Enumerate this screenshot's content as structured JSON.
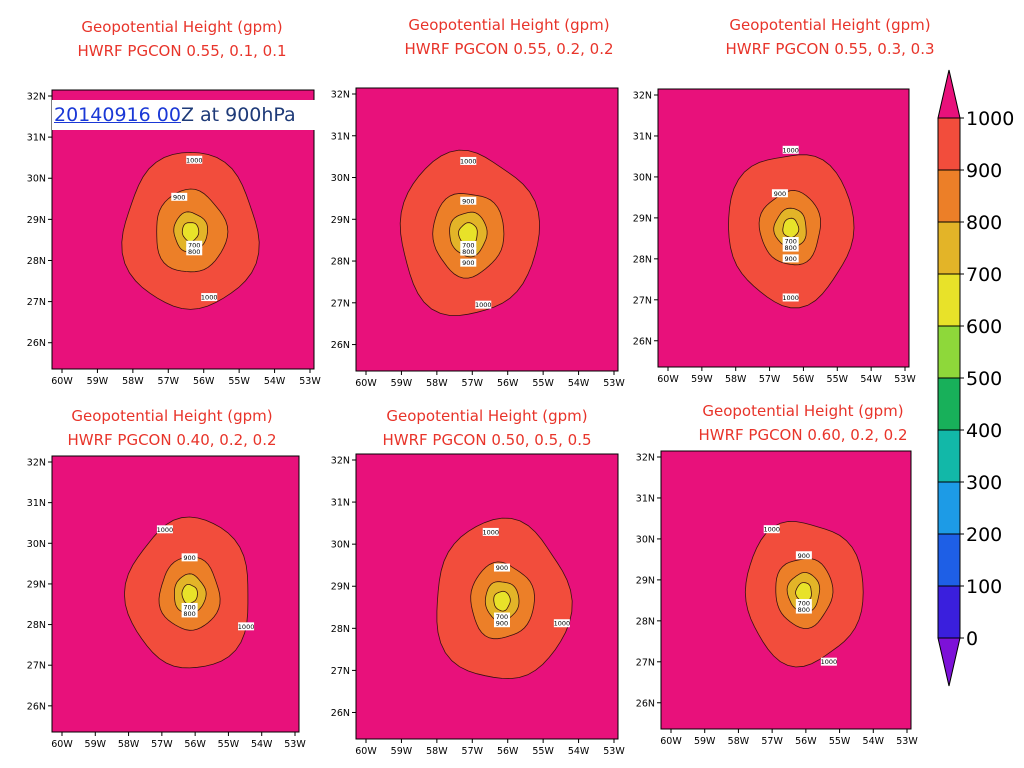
{
  "annotation": {
    "date_link": "20140916 00",
    "date_rest": "Z at 900hPa"
  },
  "colors": {
    "background": "#e8117b",
    "levels": [
      "#7d11d8",
      "#3a1fdd",
      "#1e5fe6",
      "#1d9be6",
      "#12b8a8",
      "#18b05a",
      "#8ed83a",
      "#e8e229",
      "#e3b428",
      "#ec7f28",
      "#f24d3c",
      "#e8117b"
    ]
  },
  "colorbar": {
    "labels": [
      "1000",
      "900",
      "800",
      "700",
      "600",
      "500",
      "400",
      "300",
      "200",
      "100",
      "0"
    ]
  },
  "chart_data": [
    {
      "type": "contour",
      "title": "Geopotential Height (gpm)",
      "subtitle": "HWRF PGCON 0.55, 0.1, 0.1",
      "xticks": [
        "60W",
        "59W",
        "58W",
        "57W",
        "56W",
        "55W",
        "54W",
        "53W"
      ],
      "yticks": [
        "32N",
        "31N",
        "30N",
        "29N",
        "28N",
        "27N",
        "26N"
      ],
      "xlim": [
        -60,
        -53
      ],
      "ylim": [
        25.6,
        32
      ],
      "center": [
        -56.3,
        28.75
      ],
      "contours": [
        {
          "level": 1000,
          "radius": 1.8
        },
        {
          "level": 900,
          "radius": 0.95
        },
        {
          "level": 800,
          "radius": 0.45
        },
        {
          "level": 700,
          "radius": 0.22
        }
      ],
      "contour_labels": [
        {
          "text": "1000",
          "x": -56.2,
          "y": 30.4
        },
        {
          "text": "900",
          "x": -56.6,
          "y": 29.55
        },
        {
          "text": "700",
          "x": -56.2,
          "y": 28.45
        },
        {
          "text": "800",
          "x": -56.2,
          "y": 28.3
        },
        {
          "text": "1000",
          "x": -55.8,
          "y": 27.25
        }
      ]
    },
    {
      "type": "contour",
      "title": "Geopotential Height (gpm)",
      "subtitle": "HWRF PGCON 0.55, 0.2, 0.2",
      "xticks": [
        "60W",
        "59W",
        "58W",
        "57W",
        "56W",
        "55W",
        "54W",
        "53W"
      ],
      "yticks": [
        "32N",
        "31N",
        "30N",
        "29N",
        "28N",
        "27N",
        "26N"
      ],
      "xlim": [
        -60,
        -53
      ],
      "ylim": [
        25.6,
        32
      ],
      "center": [
        -57.0,
        28.7
      ],
      "contours": [
        {
          "level": 1000,
          "radius": 1.85
        },
        {
          "level": 900,
          "radius": 0.95
        },
        {
          "level": 800,
          "radius": 0.5
        },
        {
          "level": 700,
          "radius": 0.25
        }
      ],
      "contour_labels": [
        {
          "text": "1000",
          "x": -57.0,
          "y": 30.35
        },
        {
          "text": "900",
          "x": -57.0,
          "y": 29.45
        },
        {
          "text": "700",
          "x": -57.0,
          "y": 28.45
        },
        {
          "text": "800",
          "x": -57.0,
          "y": 28.3
        },
        {
          "text": "900",
          "x": -57.0,
          "y": 28.05
        },
        {
          "text": "1000",
          "x": -56.6,
          "y": 27.1
        }
      ]
    },
    {
      "type": "contour",
      "title": "Geopotential Height (gpm)",
      "subtitle": "HWRF PGCON 0.55, 0.3, 0.3",
      "xticks": [
        "60W",
        "59W",
        "58W",
        "57W",
        "56W",
        "55W",
        "54W",
        "53W"
      ],
      "yticks": [
        "32N",
        "31N",
        "30N",
        "29N",
        "28N",
        "27N",
        "26N"
      ],
      "xlim": [
        -60,
        -53
      ],
      "ylim": [
        25.6,
        32
      ],
      "center": [
        -56.3,
        28.8
      ],
      "contours": [
        {
          "level": 1000,
          "radius": 1.75
        },
        {
          "level": 900,
          "radius": 0.85
        },
        {
          "level": 800,
          "radius": 0.45
        },
        {
          "level": 700,
          "radius": 0.22
        }
      ],
      "contour_labels": [
        {
          "text": "1000",
          "x": -56.3,
          "y": 30.6
        },
        {
          "text": "900",
          "x": -56.6,
          "y": 29.6
        },
        {
          "text": "700",
          "x": -56.3,
          "y": 28.5
        },
        {
          "text": "800",
          "x": -56.3,
          "y": 28.35
        },
        {
          "text": "900",
          "x": -56.3,
          "y": 28.1
        },
        {
          "text": "1000",
          "x": -56.3,
          "y": 27.2
        }
      ]
    },
    {
      "type": "contour",
      "title": "Geopotential Height (gpm)",
      "subtitle": "HWRF PGCON 0.40, 0.2, 0.2",
      "xticks": [
        "60W",
        "59W",
        "58W",
        "57W",
        "56W",
        "55W",
        "54W",
        "53W"
      ],
      "yticks": [
        "32N",
        "31N",
        "30N",
        "29N",
        "28N",
        "27N",
        "26N"
      ],
      "xlim": [
        -60,
        -53
      ],
      "ylim": [
        25.6,
        32
      ],
      "center": [
        -56.1,
        28.8
      ],
      "contours": [
        {
          "level": 1000,
          "radius": 1.75
        },
        {
          "level": 900,
          "radius": 0.85
        },
        {
          "level": 800,
          "radius": 0.45
        },
        {
          "level": 700,
          "radius": 0.22
        }
      ],
      "contour_labels": [
        {
          "text": "1000",
          "x": -56.8,
          "y": 30.3
        },
        {
          "text": "900",
          "x": -56.1,
          "y": 29.65
        },
        {
          "text": "700",
          "x": -56.1,
          "y": 28.5
        },
        {
          "text": "800",
          "x": -56.1,
          "y": 28.35
        },
        {
          "text": "1000",
          "x": -54.5,
          "y": 28.05
        }
      ]
    },
    {
      "type": "contour",
      "title": "Geopotential Height (gpm)",
      "subtitle": "HWRF PGCON 0.50, 0.5, 0.5",
      "xticks": [
        "60W",
        "59W",
        "58W",
        "57W",
        "56W",
        "55W",
        "54W",
        "53W"
      ],
      "yticks": [
        "32N",
        "31N",
        "30N",
        "29N",
        "28N",
        "27N",
        "26N"
      ],
      "xlim": [
        -60,
        -53
      ],
      "ylim": [
        25.6,
        32
      ],
      "center": [
        -56.1,
        28.7
      ],
      "contours": [
        {
          "level": 1000,
          "radius": 1.8
        },
        {
          "level": 900,
          "radius": 0.85
        },
        {
          "level": 800,
          "radius": 0.45
        },
        {
          "level": 700,
          "radius": 0.22
        }
      ],
      "contour_labels": [
        {
          "text": "1000",
          "x": -56.4,
          "y": 30.25
        },
        {
          "text": "900",
          "x": -56.1,
          "y": 29.45
        },
        {
          "text": "700",
          "x": -56.1,
          "y": 28.35
        },
        {
          "text": "900",
          "x": -56.1,
          "y": 28.2
        },
        {
          "text": "1000",
          "x": -54.5,
          "y": 28.2
        }
      ]
    },
    {
      "type": "contour",
      "title": "Geopotential Height (gpm)",
      "subtitle": "HWRF PGCON 0.60, 0.2, 0.2",
      "xticks": [
        "60W",
        "59W",
        "58W",
        "57W",
        "56W",
        "55W",
        "54W",
        "53W"
      ],
      "yticks": [
        "32N",
        "31N",
        "30N",
        "29N",
        "28N",
        "27N",
        "26N"
      ],
      "xlim": [
        -60,
        -53
      ],
      "ylim": [
        25.6,
        32
      ],
      "center": [
        -56.0,
        28.75
      ],
      "contours": [
        {
          "level": 1000,
          "radius": 1.65
        },
        {
          "level": 900,
          "radius": 0.8
        },
        {
          "level": 800,
          "radius": 0.45
        },
        {
          "level": 700,
          "radius": 0.22
        }
      ],
      "contour_labels": [
        {
          "text": "1000",
          "x": -56.9,
          "y": 30.2
        },
        {
          "text": "900",
          "x": -56.0,
          "y": 29.6
        },
        {
          "text": "700",
          "x": -56.0,
          "y": 28.5
        },
        {
          "text": "800",
          "x": -56.0,
          "y": 28.35
        },
        {
          "text": "1000",
          "x": -55.3,
          "y": 27.15
        }
      ]
    }
  ]
}
